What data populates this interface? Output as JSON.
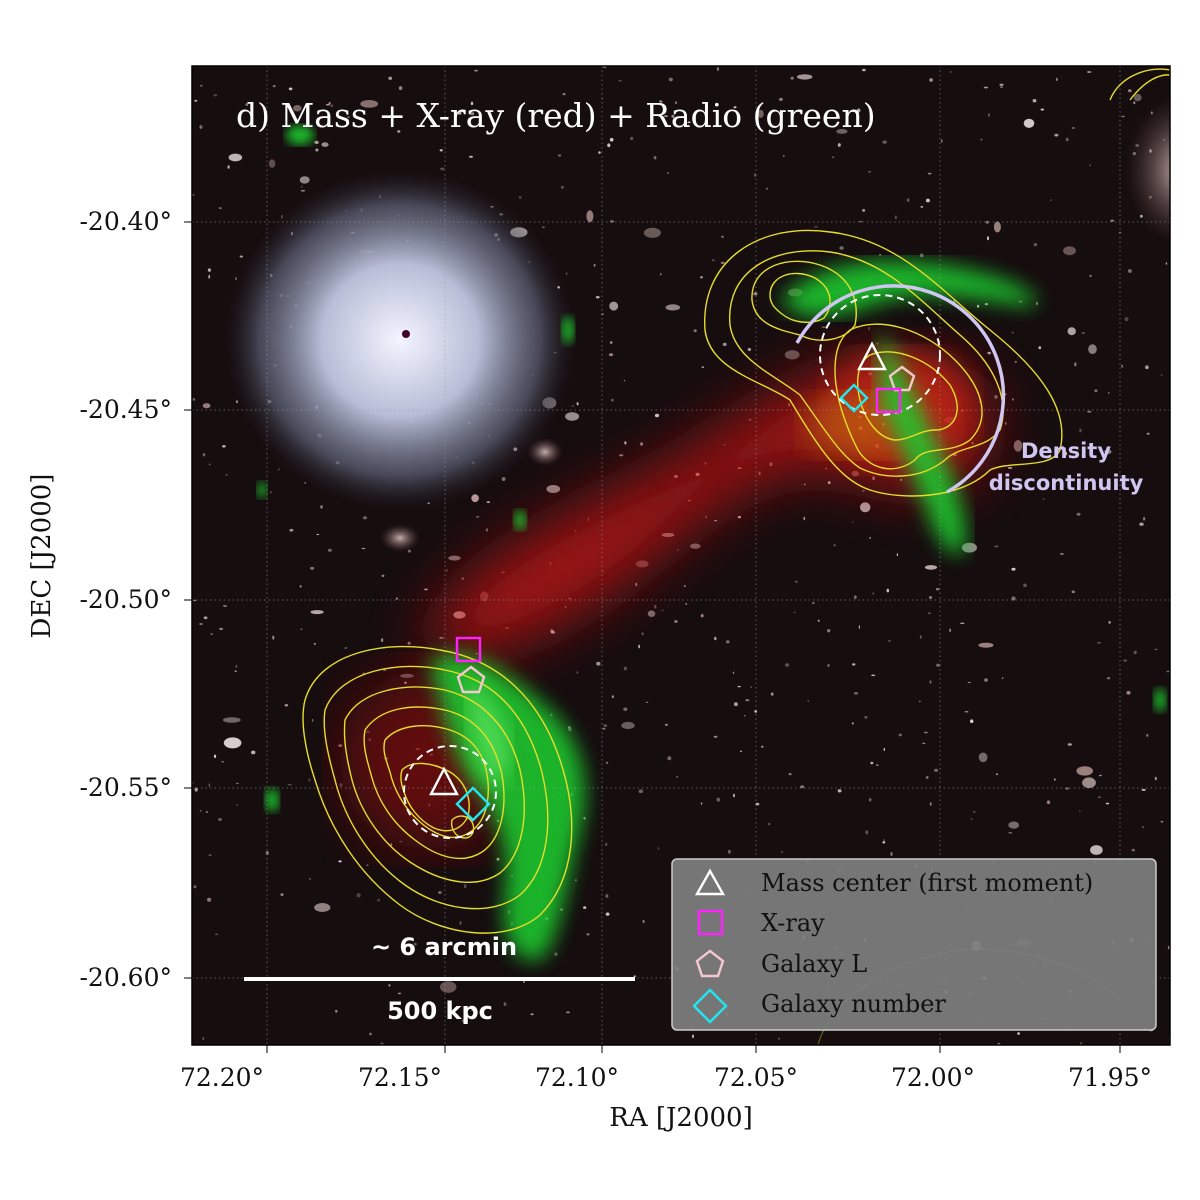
{
  "panel_title": "d) Mass + X-ray (red) + Radio (green)",
  "axes": {
    "xlabel": "RA [J2000]",
    "ylabel": "DEC [J2000]",
    "x_ticks": [
      "72.20°",
      "72.15°",
      "72.10°",
      "72.05°",
      "72.00°",
      "71.95°"
    ],
    "y_ticks": [
      "-20.40°",
      "-20.45°",
      "-20.50°",
      "-20.55°",
      "-20.60°"
    ]
  },
  "annotations": {
    "density_line1": "Density",
    "density_line2": "discontinuity",
    "scale_top": "~ 6 arcmin",
    "scale_bottom": "500 kpc"
  },
  "legend": {
    "mass": "Mass center (first moment)",
    "xray": "X-ray",
    "galaxy_l": "Galaxy L",
    "galaxy_number": "Galaxy number"
  },
  "colors": {
    "xray_emission": "#d01010",
    "radio_emission": "#22dd33",
    "mass_contours": "#e6dd2a",
    "mass_marker": "#ffffff",
    "xray_marker": "#ff22ff",
    "galaxy_l_marker": "#f5c8cf",
    "galaxy_number_marker": "#22e6f0",
    "density_arc": "#cfc6f2",
    "legend_bg": "#808080"
  }
}
